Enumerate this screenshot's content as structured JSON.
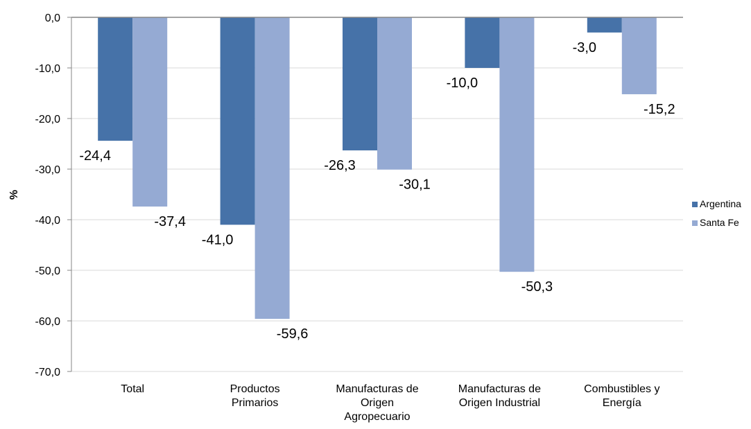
{
  "chart_data": {
    "type": "bar",
    "ylabel": "%",
    "ylim": [
      -70,
      0
    ],
    "yticks": [
      0,
      -10,
      -20,
      -30,
      -40,
      -50,
      -60,
      -70
    ],
    "ytick_labels": [
      "0,0",
      "-10,0",
      "-20,0",
      "-30,0",
      "-40,0",
      "-50,0",
      "-60,0",
      "-70,0"
    ],
    "grid": true,
    "legend_position": "right",
    "categories": [
      [
        "Total"
      ],
      [
        "Productos",
        "Primarios"
      ],
      [
        "Manufacturas de",
        "Origen",
        "Agropecuario"
      ],
      [
        "Manufacturas de",
        "Origen Industrial"
      ],
      [
        "Combustibles y",
        "Energía"
      ]
    ],
    "series": [
      {
        "name": "Argentina",
        "color": "#4672A8",
        "values": [
          -24.4,
          -41.0,
          -26.3,
          -10.0,
          -3.0
        ],
        "labels": [
          "-24,4",
          "-41,0",
          "-26,3",
          "-10,0",
          "-3,0"
        ]
      },
      {
        "name": "Santa Fe",
        "color": "#95AAD3",
        "values": [
          -37.4,
          -59.6,
          -30.1,
          -50.3,
          -15.2
        ],
        "labels": [
          "-37,4",
          "-59,6",
          "-30,1",
          "-50,3",
          "-15,2"
        ]
      }
    ]
  }
}
